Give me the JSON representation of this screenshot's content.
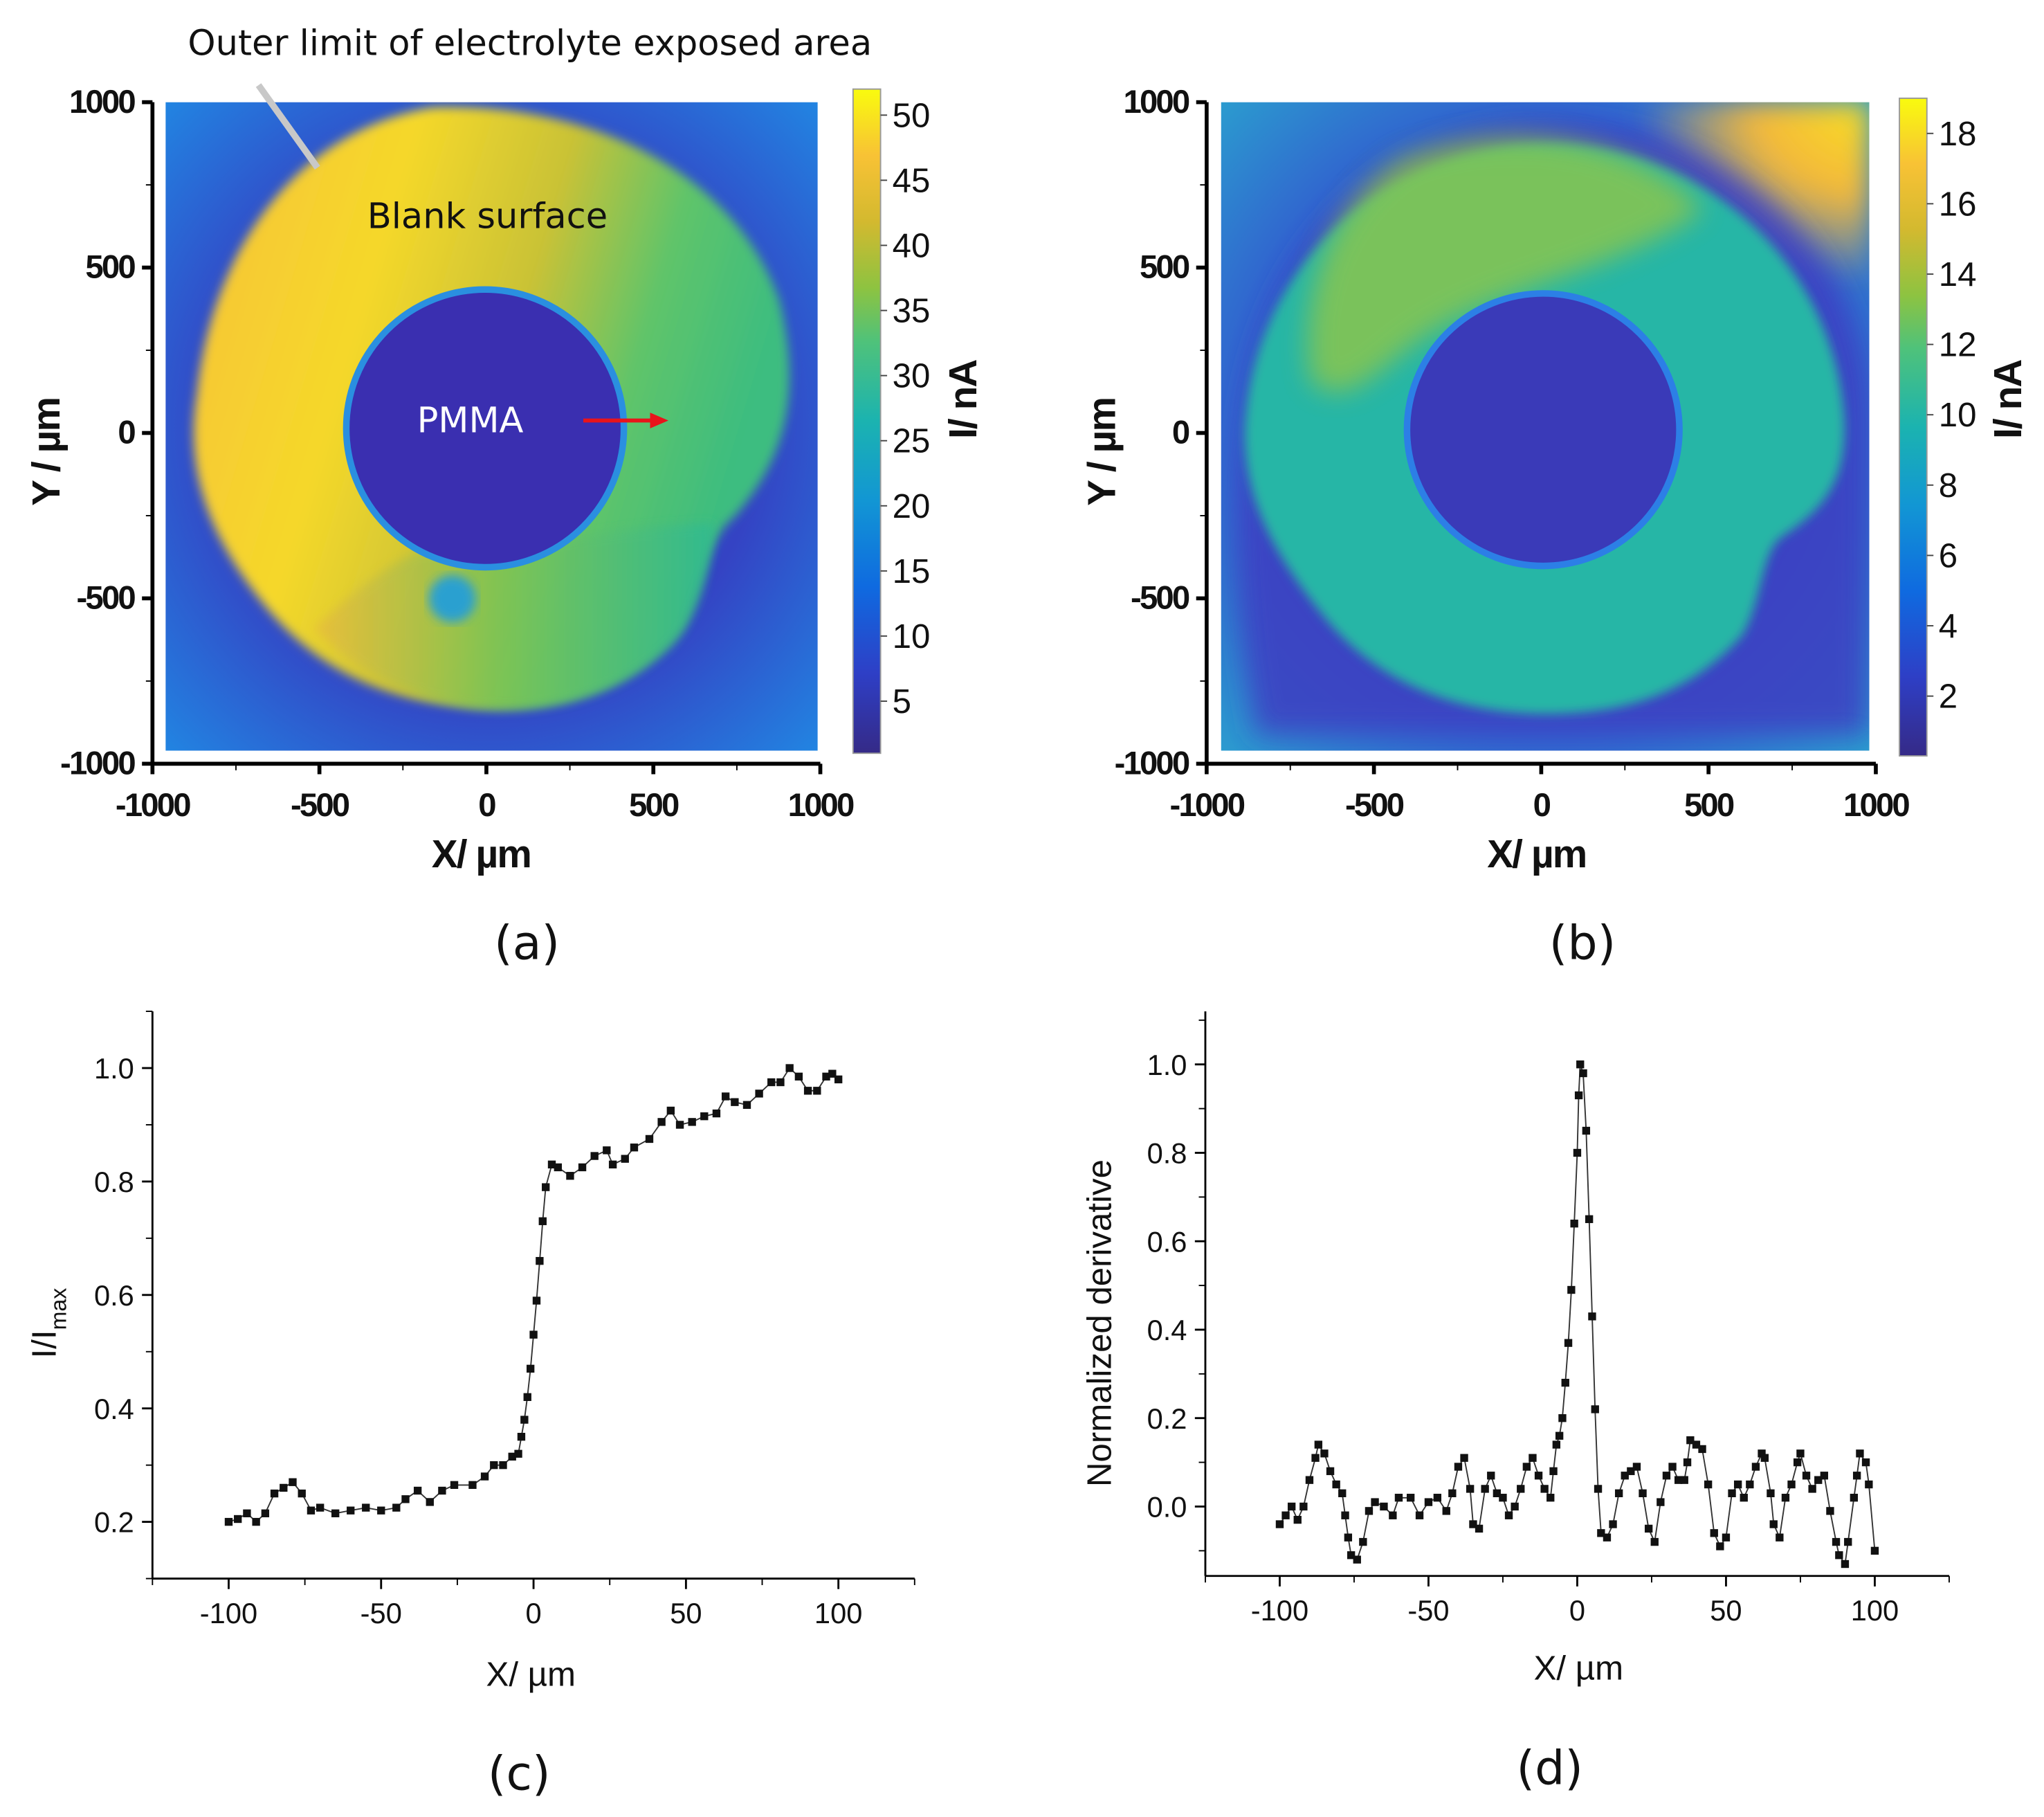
{
  "panels": {
    "a": {
      "caption": "(a)",
      "annotation_top": "Outer limit of electrolyte exposed area",
      "annotation_blank": "Blank surface",
      "annotation_pmma": "PMMA",
      "xlabel": "X/ µm",
      "ylabel": "Y / µm",
      "colorbar_label": "I/ nA"
    },
    "b": {
      "caption": "(b)",
      "xlabel": "X/ µm",
      "ylabel": "Y / µm",
      "colorbar_label": "I/ nA"
    },
    "c": {
      "caption": "(c)",
      "xlabel": "X/ µm",
      "ylabel_main": "I/I",
      "ylabel_sub": "max"
    },
    "d": {
      "caption": "(d)",
      "xlabel": "X/ µm",
      "ylabel": "Normalized derivative"
    }
  },
  "colors": {
    "arrow": "#e8141b",
    "marker": "#111111",
    "pmma_label": "#ffffff"
  },
  "chart_data": [
    {
      "id": "a",
      "type": "heatmap",
      "title": "",
      "xlabel": "X/ µm",
      "ylabel": "Y / µm",
      "xlim": [
        -1000,
        1000
      ],
      "ylim": [
        -1000,
        1000
      ],
      "xticks": [
        "-1000",
        "-500",
        "0",
        "500",
        "1000"
      ],
      "yticks": [
        "1000",
        "500",
        "0",
        "-500",
        "-1000"
      ],
      "colorbar": {
        "label": "I/ nA",
        "range": [
          1,
          52
        ],
        "ticks": [
          "50",
          "45",
          "40",
          "35",
          "30",
          "25",
          "20",
          "15",
          "10",
          "5"
        ]
      },
      "annotations": [
        "Outer limit of electrolyte exposed area",
        "Blank surface",
        "PMMA"
      ]
    },
    {
      "id": "b",
      "type": "heatmap",
      "title": "",
      "xlabel": "X/ µm",
      "ylabel": "Y / µm",
      "xlim": [
        -1000,
        1000
      ],
      "ylim": [
        -1000,
        1000
      ],
      "xticks": [
        "-1000",
        "-500",
        "0",
        "500",
        "1000"
      ],
      "yticks": [
        "1000",
        "500",
        "0",
        "-500",
        "-1000"
      ],
      "colorbar": {
        "label": "I/ nA",
        "range": [
          0.3,
          19
        ],
        "ticks": [
          "18",
          "16",
          "14",
          "12",
          "10",
          "8",
          "6",
          "4",
          "2"
        ]
      }
    },
    {
      "id": "c",
      "type": "line",
      "xlabel": "X/ µm",
      "ylabel": "I/Imax",
      "xlim": [
        -125,
        125
      ],
      "ylim": [
        0.1,
        1.1
      ],
      "xticks": [
        "-100",
        "-50",
        "0",
        "50",
        "100"
      ],
      "yticks": [
        "0.2",
        "0.4",
        "0.6",
        "0.8",
        "1.0"
      ],
      "x": [
        -100,
        -97,
        -94,
        -91,
        -88,
        -85,
        -82,
        -79,
        -76,
        -73,
        -70,
        -65,
        -60,
        -55,
        -50,
        -45,
        -42,
        -38,
        -34,
        -30,
        -26,
        -20,
        -16,
        -13,
        -10,
        -7,
        -5,
        -4,
        -3,
        -2,
        -1,
        0,
        1,
        2,
        3,
        4,
        6,
        8,
        12,
        16,
        20,
        24,
        26,
        30,
        33,
        38,
        42,
        45,
        48,
        52,
        56,
        60,
        63,
        66,
        70,
        74,
        78,
        81,
        84,
        87,
        90,
        93,
        96,
        98,
        100
      ],
      "y": [
        0.2,
        0.205,
        0.215,
        0.2,
        0.215,
        0.25,
        0.26,
        0.27,
        0.25,
        0.22,
        0.225,
        0.215,
        0.22,
        0.225,
        0.22,
        0.225,
        0.24,
        0.255,
        0.235,
        0.255,
        0.265,
        0.265,
        0.28,
        0.3,
        0.3,
        0.315,
        0.32,
        0.35,
        0.38,
        0.42,
        0.47,
        0.53,
        0.59,
        0.66,
        0.73,
        0.79,
        0.83,
        0.825,
        0.81,
        0.825,
        0.845,
        0.855,
        0.83,
        0.84,
        0.86,
        0.875,
        0.905,
        0.925,
        0.9,
        0.905,
        0.915,
        0.92,
        0.95,
        0.94,
        0.935,
        0.955,
        0.975,
        0.975,
        1.0,
        0.985,
        0.96,
        0.96,
        0.985,
        0.99,
        0.98
      ]
    },
    {
      "id": "d",
      "type": "line",
      "xlabel": "X/ µm",
      "ylabel": "Normalized derivative",
      "xlim": [
        -125,
        125
      ],
      "ylim": [
        -0.157,
        1.12
      ],
      "xticks": [
        "-100",
        "-50",
        "0",
        "50",
        "100"
      ],
      "yticks": [
        "0.0",
        "0.2",
        "0.4",
        "0.6",
        "0.8",
        "1.0"
      ],
      "x": [
        -100,
        -98,
        -96,
        -94,
        -92,
        -90,
        -88,
        -87,
        -85,
        -83,
        -81,
        -79,
        -78,
        -77,
        -76,
        -74,
        -72,
        -70,
        -68,
        -65,
        -62,
        -60,
        -56,
        -53,
        -50,
        -47,
        -44,
        -42,
        -40,
        -38,
        -36,
        -35,
        -33,
        -31,
        -29,
        -27,
        -25,
        -23,
        -21,
        -19,
        -17,
        -15,
        -13,
        -11,
        -9,
        -8,
        -7,
        -6,
        -5,
        -4,
        -3,
        -2,
        -1,
        0,
        0.5,
        1,
        2,
        3,
        4,
        5,
        6,
        7,
        8,
        10,
        12,
        14,
        16,
        18,
        20,
        22,
        24,
        26,
        28,
        30,
        32,
        34,
        36,
        37,
        38,
        40,
        42,
        44,
        46,
        48,
        50,
        52,
        54,
        56,
        58,
        60,
        62,
        63,
        65,
        66,
        68,
        70,
        72,
        74,
        75,
        77,
        79,
        81,
        83,
        85,
        87,
        88,
        90,
        91,
        93,
        94,
        95,
        97,
        98,
        100
      ],
      "y": [
        -0.04,
        -0.02,
        0.0,
        -0.03,
        0.0,
        0.06,
        0.11,
        0.14,
        0.12,
        0.08,
        0.05,
        0.03,
        -0.02,
        -0.07,
        -0.11,
        -0.12,
        -0.08,
        -0.01,
        0.01,
        0.0,
        -0.02,
        0.02,
        0.02,
        -0.02,
        0.01,
        0.02,
        -0.01,
        0.03,
        0.09,
        0.11,
        0.04,
        -0.04,
        -0.05,
        0.04,
        0.07,
        0.03,
        0.02,
        -0.02,
        0.0,
        0.04,
        0.09,
        0.11,
        0.07,
        0.04,
        0.02,
        0.08,
        0.14,
        0.16,
        0.2,
        0.28,
        0.37,
        0.49,
        0.64,
        0.8,
        0.93,
        1.0,
        0.98,
        0.85,
        0.65,
        0.43,
        0.22,
        0.04,
        -0.06,
        -0.07,
        -0.04,
        0.03,
        0.07,
        0.08,
        0.09,
        0.03,
        -0.05,
        -0.08,
        0.01,
        0.07,
        0.09,
        0.06,
        0.06,
        0.1,
        0.15,
        0.14,
        0.13,
        0.05,
        -0.06,
        -0.09,
        -0.07,
        0.03,
        0.05,
        0.02,
        0.05,
        0.09,
        0.12,
        0.11,
        0.03,
        -0.04,
        -0.07,
        0.02,
        0.05,
        0.1,
        0.12,
        0.07,
        0.04,
        0.06,
        0.07,
        -0.01,
        -0.08,
        -0.11,
        -0.13,
        -0.08,
        0.02,
        0.07,
        0.12,
        0.1,
        0.05,
        -0.1
      ]
    }
  ]
}
